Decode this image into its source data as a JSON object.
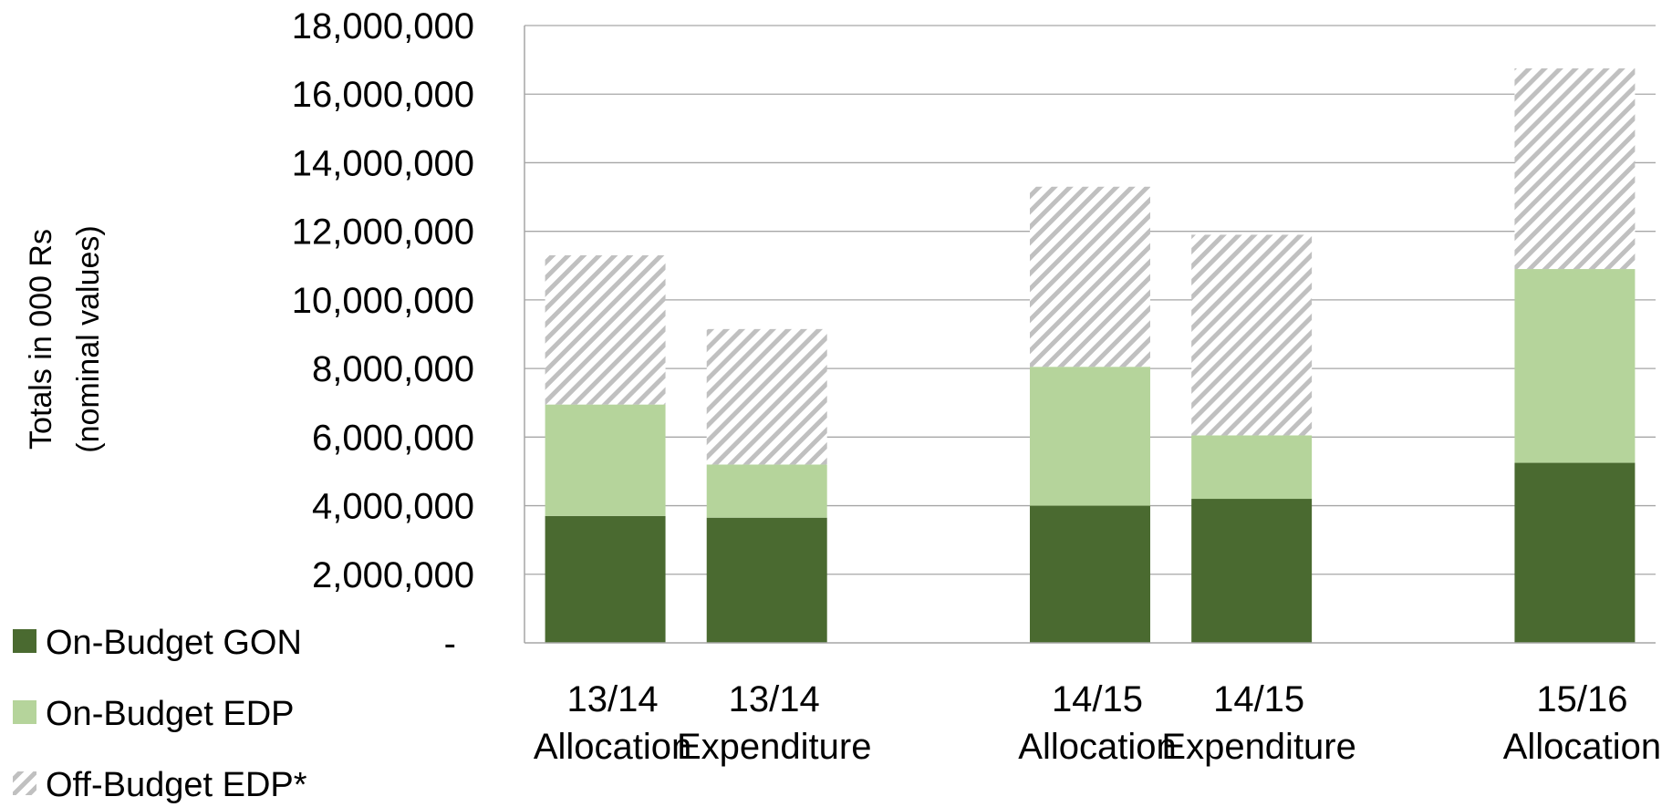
{
  "chart_data": {
    "type": "bar",
    "stacked": true,
    "ylabel": [
      "Totals in 000 Rs",
      "(nominal values)"
    ],
    "ylim": [
      0,
      18000000
    ],
    "yticks": [
      0,
      2000000,
      4000000,
      6000000,
      8000000,
      10000000,
      12000000,
      14000000,
      16000000,
      18000000
    ],
    "ytick_labels": [
      "-",
      "2,000,000",
      "4,000,000",
      "6,000,000",
      "8,000,000",
      "10,000,000",
      "12,000,000",
      "14,000,000",
      "16,000,000",
      "18,000,000"
    ],
    "grid": true,
    "legend_position": "bottom-left",
    "categories": [
      [
        "13/14",
        "Allocation"
      ],
      [
        "13/14",
        "Expenditure"
      ],
      [
        "",
        ""
      ],
      [
        "14/15",
        "Allocation"
      ],
      [
        "14/15",
        "Expenditure"
      ],
      [
        "",
        ""
      ],
      [
        "15/16",
        "Allocation"
      ]
    ],
    "series": [
      {
        "name": "On-Budget GON",
        "color": "#4a6a30",
        "pattern": "solid",
        "values": [
          3700000,
          3650000,
          null,
          4000000,
          4200000,
          null,
          5250000
        ]
      },
      {
        "name": "On-Budget EDP",
        "color": "#b5d49b",
        "pattern": "solid",
        "values": [
          3250000,
          1550000,
          null,
          4050000,
          1850000,
          null,
          5650000
        ]
      },
      {
        "name": "Off-Budget EDP*",
        "color": "#c0c0c0",
        "pattern": "hatch",
        "values": [
          4350000,
          3950000,
          null,
          5250000,
          5850000,
          null,
          5850000
        ]
      }
    ]
  }
}
